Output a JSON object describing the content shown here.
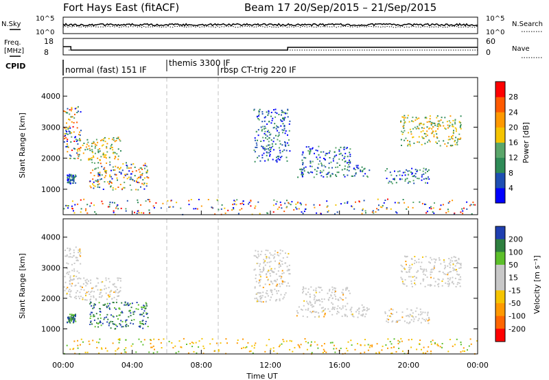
{
  "chart_data": [
    {
      "type": "line",
      "panel": "noise",
      "title_left": "Fort Hays East (fitACF)",
      "title_right": "Beam 17  20/Sep/2015 – 21/Sep/2015",
      "left_label": "N.Sky",
      "right_label": "N.Search",
      "left_ticks": [
        "10^5",
        "10^0"
      ],
      "right_ticks": [
        "10^5",
        "10^0"
      ]
    },
    {
      "type": "line",
      "panel": "frequency-nave",
      "left_label_line1": "Freq.",
      "left_label_line2": "[MHz]",
      "right_label": "Nave",
      "left_ticks": [
        "18",
        "8"
      ],
      "right_ticks": [
        "60",
        "0"
      ],
      "freq_segments": [
        {
          "x0": 0.0,
          "x1": 0.45,
          "y": 13
        },
        {
          "x0": 0.45,
          "x1": 1.0,
          "y": 10.9
        },
        {
          "x0": 1.0,
          "x1": 13.0,
          "y": 10.9
        },
        {
          "x0": 13.0,
          "x1": 24.0,
          "y": 12.6
        }
      ],
      "ylim": [
        8,
        18
      ]
    },
    {
      "type": "table",
      "panel": "cpid",
      "label": "CPID",
      "segments": [
        {
          "label": "normal (fast) 151 IF"
        },
        {
          "label": "themis 3300 IF"
        },
        {
          "label": "rbsp CT-trig 220 IF"
        }
      ],
      "boundaries_hours": [
        6.0,
        9.0
      ]
    },
    {
      "type": "heatmap",
      "panel": "power",
      "ylabel": "Slant Range [km]",
      "yticks": [
        1000,
        2000,
        3000,
        4000
      ],
      "ylim": [
        180,
        4600
      ],
      "xlim_hours": [
        0,
        24
      ],
      "colorbar_label": "Power [dB]",
      "colorbar_ticks": [
        "4",
        "8",
        "12",
        "16",
        "20",
        "24",
        "28"
      ],
      "scatter_regions": [
        {
          "t0": 0.0,
          "t1": 1.0,
          "r0": 2000,
          "r1": 3700,
          "level": "high"
        },
        {
          "t0": 0.9,
          "t1": 3.3,
          "r0": 1950,
          "r1": 2700,
          "level": "mid"
        },
        {
          "t0": 0.2,
          "t1": 0.7,
          "r0": 1200,
          "r1": 1500,
          "level": "low"
        },
        {
          "t0": 1.5,
          "t1": 4.9,
          "r0": 1000,
          "r1": 1900,
          "level": "mixed"
        },
        {
          "t0": 11.0,
          "t1": 13.1,
          "r0": 1900,
          "r1": 3600,
          "level": "low"
        },
        {
          "t0": 13.5,
          "t1": 17.7,
          "r0": 1400,
          "r1": 1800,
          "level": "low"
        },
        {
          "t0": 13.8,
          "t1": 16.6,
          "r0": 1800,
          "r1": 2400,
          "level": "low"
        },
        {
          "t0": 18.6,
          "t1": 21.2,
          "r0": 1200,
          "r1": 1700,
          "level": "low"
        },
        {
          "t0": 19.5,
          "t1": 23.0,
          "r0": 2400,
          "r1": 3400,
          "level": "mid"
        },
        {
          "t0": 0.0,
          "t1": 24.0,
          "r0": 200,
          "r1": 700,
          "level": "noise"
        }
      ]
    },
    {
      "type": "heatmap",
      "panel": "velocity",
      "ylabel": "Slant Range [km]",
      "yticks": [
        1000,
        2000,
        3000,
        4000
      ],
      "ylim": [
        180,
        4600
      ],
      "xlim_hours": [
        0,
        24
      ],
      "xticks": [
        "00:00",
        "04:00",
        "08:00",
        "12:00",
        "16:00",
        "20:00",
        "00:00"
      ],
      "xlabel": "Time UT",
      "colorbar_label": "Velocity [m s⁻¹]",
      "colorbar_ticks": [
        "200",
        "100",
        "50",
        "15",
        "-15",
        "-50",
        "-100",
        "-200"
      ],
      "scatter_regions": [
        {
          "t0": 0.0,
          "t1": 1.0,
          "r0": 2000,
          "r1": 3700,
          "level": "ground"
        },
        {
          "t0": 0.9,
          "t1": 3.3,
          "r0": 1950,
          "r1": 2700,
          "level": "ground"
        },
        {
          "t0": 0.2,
          "t1": 0.7,
          "r0": 1200,
          "r1": 1500,
          "level": "pos"
        },
        {
          "t0": 1.5,
          "t1": 4.9,
          "r0": 1000,
          "r1": 1900,
          "level": "pos"
        },
        {
          "t0": 11.0,
          "t1": 13.1,
          "r0": 1900,
          "r1": 3600,
          "level": "ground"
        },
        {
          "t0": 13.5,
          "t1": 17.7,
          "r0": 1400,
          "r1": 1800,
          "level": "ground"
        },
        {
          "t0": 13.8,
          "t1": 16.6,
          "r0": 1800,
          "r1": 2400,
          "level": "ground"
        },
        {
          "t0": 18.6,
          "t1": 21.2,
          "r0": 1200,
          "r1": 1700,
          "level": "ground"
        },
        {
          "t0": 19.5,
          "t1": 23.0,
          "r0": 2400,
          "r1": 3400,
          "level": "ground"
        },
        {
          "t0": 0.0,
          "t1": 24.0,
          "r0": 200,
          "r1": 700,
          "level": "neg"
        }
      ]
    }
  ],
  "colors": {
    "power_scale": [
      "#0000ff",
      "#1e4fb3",
      "#2e8b57",
      "#5aa66a",
      "#f5c400",
      "#ff9900",
      "#ff5a00",
      "#ff0000"
    ],
    "velocity_pos": [
      "#1f3fb0",
      "#2e7f3f",
      "#5cbf2a"
    ],
    "velocity_ground": "#c8c8c8",
    "velocity_neg": [
      "#f5c400",
      "#ff9900",
      "#ff6600",
      "#ff0000"
    ],
    "axis": "#000000",
    "dashed_boundary": "#b4b4b4"
  }
}
